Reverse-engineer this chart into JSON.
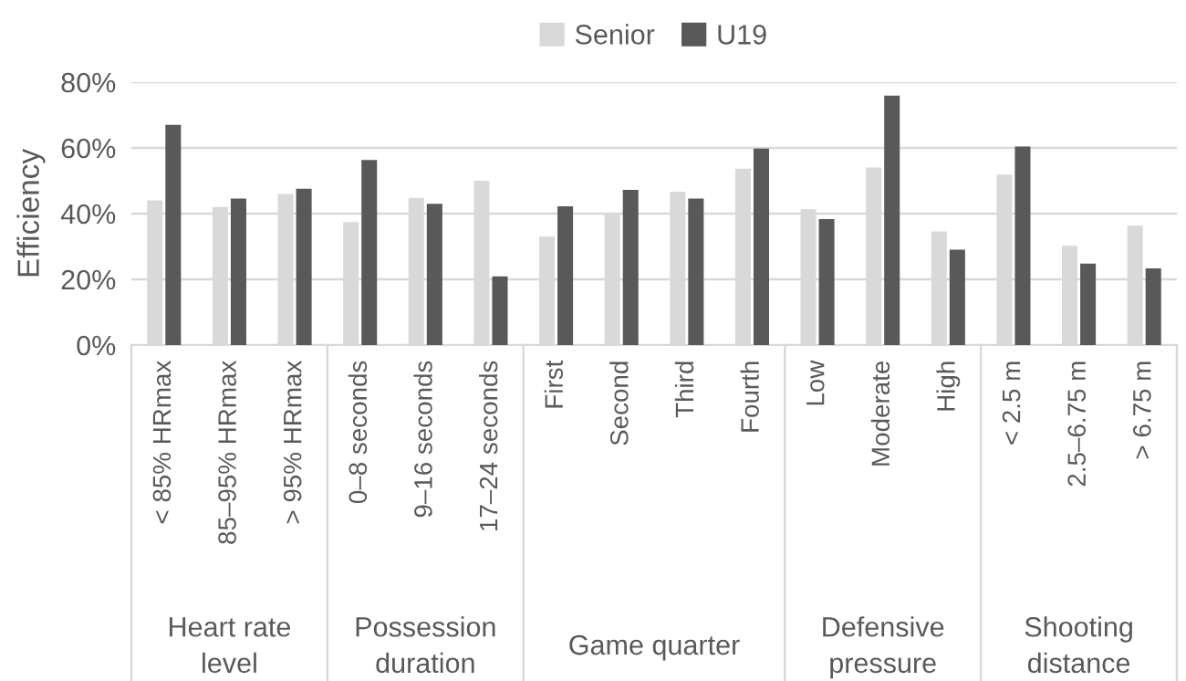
{
  "chart_data": {
    "type": "bar",
    "ylabel": "Efficiency",
    "categories": [
      "< 85% HRmax",
      "85–95% HRmax",
      "> 95% HRmax",
      "0–8 seconds",
      "9–16 seconds",
      "17–24 seconds",
      "First",
      "Second",
      "Third",
      "Fourth",
      "Low",
      "Moderate",
      "High",
      "< 2.5 m",
      "2.5–6.75 m",
      "> 6.75 m"
    ],
    "series": [
      {
        "name": "Senior",
        "color": "#d9d9d9",
        "values": [
          44,
          42,
          46,
          37.4,
          44.8,
          50,
          33,
          40,
          46.7,
          53.7,
          41.3,
          54,
          34.6,
          51.9,
          30.2,
          36.3
        ]
      },
      {
        "name": "U19",
        "color": "#595959",
        "values": [
          67,
          44.6,
          47.6,
          56.3,
          43,
          20.9,
          42.2,
          47.2,
          44.6,
          59.8,
          38.3,
          75.9,
          29,
          60.4,
          24.8,
          23.3
        ]
      }
    ],
    "ylim": [
      0,
      80
    ],
    "yticks": [
      {
        "value": 0,
        "label": "0%"
      },
      {
        "value": 20,
        "label": "20%"
      },
      {
        "value": 40,
        "label": "40%"
      },
      {
        "value": 60,
        "label": "60%"
      },
      {
        "value": 80,
        "label": "80%"
      }
    ],
    "grid": "y",
    "legend": "top",
    "annotations": [
      "Heart rate\nlevel",
      "Possession\nduration",
      "Game quarter",
      "Defensive\npressure",
      "Shooting\ndistance"
    ]
  }
}
